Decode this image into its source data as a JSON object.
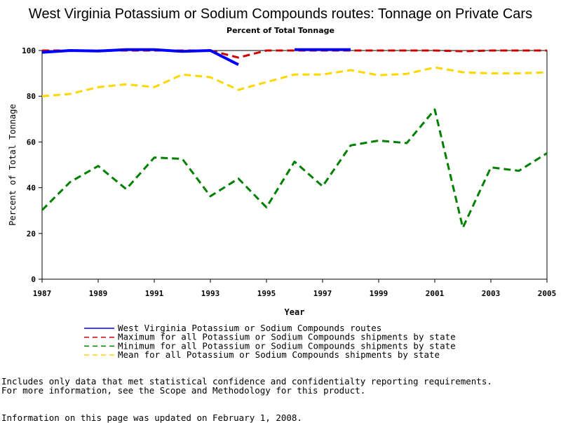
{
  "chart_data": {
    "type": "line",
    "title": "West Virginia Potassium or Sodium Compounds routes: Tonnage on Private Cars",
    "subtitle": "Percent of Total Tonnage",
    "xlabel": "Year",
    "ylabel": "Percent of Total Tonnage",
    "xlim": [
      1987,
      2005
    ],
    "ylim": [
      0,
      100
    ],
    "x_ticks": [
      "1987",
      "1989",
      "1991",
      "1993",
      "1995",
      "1997",
      "1999",
      "2001",
      "2003",
      "2005"
    ],
    "y_ticks": [
      "0",
      "20",
      "40",
      "60",
      "80",
      "100"
    ],
    "grid": false,
    "legend_position": "bottom",
    "series": [
      {
        "name": "West Virginia Potassium or Sodium Compounds routes",
        "color": "#0000ff",
        "style": "solid",
        "segments": [
          [
            [
              1987,
              99.2
            ],
            [
              1988,
              100
            ],
            [
              1989,
              99.8
            ],
            [
              1990,
              100.4
            ],
            [
              1991,
              100.4
            ],
            [
              1992,
              99.6
            ],
            [
              1993,
              100
            ],
            [
              1994,
              93.8
            ]
          ],
          [
            [
              1996,
              100.4
            ],
            [
              1997,
              100.4
            ],
            [
              1998,
              100.4
            ]
          ]
        ]
      },
      {
        "name": "Maximum for all Potassium or Sodium Compounds shipments by state",
        "color": "#cc0000",
        "style": "dashed",
        "segments": [
          [
            [
              1987,
              100
            ],
            [
              1988,
              100
            ],
            [
              1989,
              100
            ],
            [
              1990,
              100
            ],
            [
              1991,
              100
            ],
            [
              1992,
              100
            ],
            [
              1993,
              100
            ],
            [
              1994,
              96.9
            ],
            [
              1995,
              100
            ],
            [
              1996,
              100
            ],
            [
              1997,
              100
            ],
            [
              1998,
              100
            ],
            [
              1999,
              100
            ],
            [
              2000,
              100
            ],
            [
              2001,
              100
            ],
            [
              2002,
              99.7
            ],
            [
              2003,
              100
            ],
            [
              2004,
              100
            ],
            [
              2005,
              100
            ]
          ]
        ]
      },
      {
        "name": "Minimum for all Potassium or Sodium Compounds shipments by state",
        "color": "#008000",
        "style": "dashed",
        "segments": [
          [
            [
              1987,
              30.2
            ],
            [
              1988,
              42.5
            ],
            [
              1989,
              49.5
            ],
            [
              1990,
              39.4
            ],
            [
              1991,
              53.2
            ],
            [
              1992,
              52.6
            ],
            [
              1993,
              36.3
            ],
            [
              1994,
              44
            ],
            [
              1995,
              31.4
            ],
            [
              1996,
              51.4
            ],
            [
              1997,
              40.6
            ],
            [
              1998,
              58.5
            ],
            [
              1999,
              60.6
            ],
            [
              2000,
              59.5
            ],
            [
              2001,
              74.2
            ],
            [
              2002,
              22.5
            ],
            [
              2003,
              48.9
            ],
            [
              2004,
              47.4
            ],
            [
              2005,
              55.1
            ]
          ]
        ]
      },
      {
        "name": "Mean for all Potassium or Sodium Compounds shipments by state",
        "color": "#ffd700",
        "style": "dashed",
        "segments": [
          [
            [
              1987,
              80
            ],
            [
              1988,
              81
            ],
            [
              1989,
              84
            ],
            [
              1990,
              85.2
            ],
            [
              1991,
              84
            ],
            [
              1992,
              89.5
            ],
            [
              1993,
              88.3
            ],
            [
              1994,
              82.8
            ],
            [
              1995,
              86.2
            ],
            [
              1996,
              89.5
            ],
            [
              1997,
              89.5
            ],
            [
              1998,
              91.4
            ],
            [
              1999,
              89.2
            ],
            [
              2000,
              89.8
            ],
            [
              2001,
              92.6
            ],
            [
              2002,
              90.5
            ],
            [
              2003,
              90
            ],
            [
              2004,
              90
            ],
            [
              2005,
              90.5
            ]
          ]
        ]
      }
    ]
  },
  "notes": {
    "line1": "Includes only data that met statistical confidence and confidentialty reporting requirements.",
    "line2": "For more information, see the Scope and Methodology for this product.",
    "updated": "Information on this page was updated on February 1, 2008."
  }
}
